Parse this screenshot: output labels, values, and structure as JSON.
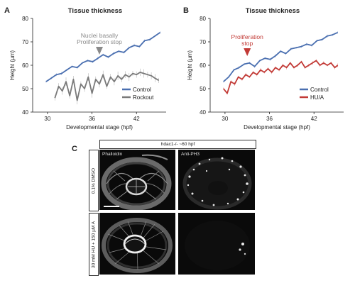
{
  "panel_letters": {
    "a": "A",
    "b": "B",
    "c": "C"
  },
  "chart_data": [
    {
      "type": "line",
      "title": "Tissue thickness",
      "xlabel": "Developmental stage (hpf)",
      "ylabel": "Height (µm)",
      "xlim": [
        28,
        46
      ],
      "ylim": [
        40,
        80
      ],
      "xticks": [
        "30",
        "36",
        "42"
      ],
      "yticks": [
        "40",
        "50",
        "60",
        "70",
        "80"
      ],
      "annotation": {
        "text": [
          "Nuclei basally",
          "Proliferation stop"
        ],
        "x": 37,
        "color": "#8a8a8a"
      },
      "legend_position": "bottom-right",
      "series": [
        {
          "name": "Control",
          "color": "#4a6fb0",
          "x": [
            29.8,
            30.5,
            31.2,
            31.9,
            32.6,
            33.3,
            34.0,
            34.7,
            35.4,
            36.1,
            36.8,
            37.5,
            38.2,
            38.9,
            39.6,
            40.3,
            41.0,
            41.7,
            42.4,
            43.1,
            43.8,
            44.5,
            45.2
          ],
          "y": [
            53,
            54.5,
            56,
            56.5,
            58,
            59.5,
            59,
            61,
            62,
            61.5,
            63,
            64.5,
            63.5,
            65,
            66,
            65.5,
            67.5,
            68.5,
            68,
            70.5,
            71,
            72.5,
            74
          ]
        },
        {
          "name": "Rockout",
          "color": "#7a7a7a",
          "x": [
            31.0,
            31.5,
            32.0,
            32.5,
            33.0,
            33.5,
            34.0,
            34.5,
            35.0,
            35.5,
            36.0,
            36.5,
            37.0,
            37.5,
            38.0,
            38.5,
            39.0,
            39.5,
            40.0,
            40.5,
            41.0,
            41.5,
            42.0,
            42.5,
            43.0,
            43.5,
            44.0,
            44.5,
            45.0
          ],
          "y": [
            46,
            51,
            49,
            53,
            47,
            54,
            45,
            52,
            50,
            55,
            48,
            54,
            52,
            56,
            51,
            55,
            53,
            55.5,
            54,
            56,
            55,
            56.5,
            56,
            57,
            56.5,
            56,
            55.5,
            54.5,
            53.5
          ]
        }
      ]
    },
    {
      "type": "line",
      "title": "Tissue thickness",
      "xlabel": "Developmental stage (hpf)",
      "ylabel": "Height (µm)",
      "xlim": [
        28,
        46
      ],
      "ylim": [
        40,
        80
      ],
      "xticks": [
        "30",
        "36",
        "42"
      ],
      "yticks": [
        "40",
        "50",
        "60",
        "70",
        "80"
      ],
      "annotation": {
        "text": [
          "Proliferation",
          "stop"
        ],
        "x": 33,
        "color": "#c23a36"
      },
      "legend_position": "bottom-right",
      "series": [
        {
          "name": "Control",
          "color": "#4a6fb0",
          "x": [
            29.8,
            30.5,
            31.2,
            31.9,
            32.6,
            33.3,
            34.0,
            34.7,
            35.4,
            36.1,
            36.8,
            37.5,
            38.2,
            38.9,
            39.6,
            40.3,
            41.0,
            41.7,
            42.4,
            43.1,
            43.8,
            44.5,
            45.2
          ],
          "y": [
            53,
            55,
            58,
            59,
            60.5,
            61,
            59.5,
            62,
            63,
            62.5,
            64,
            66,
            65,
            67,
            67.5,
            68,
            69,
            68.5,
            70.5,
            71,
            72.5,
            73,
            74
          ]
        },
        {
          "name": "HU/A",
          "color": "#c23a36",
          "x": [
            29.8,
            30.3,
            30.8,
            31.3,
            31.8,
            32.3,
            32.8,
            33.3,
            33.8,
            34.3,
            34.8,
            35.3,
            35.8,
            36.3,
            36.8,
            37.3,
            37.8,
            38.3,
            38.8,
            39.3,
            39.8,
            40.3,
            40.8,
            41.3,
            41.8,
            42.3,
            42.8,
            43.3,
            43.8,
            44.3,
            44.8,
            45.2
          ],
          "y": [
            50,
            48,
            53,
            52,
            55,
            54,
            56,
            55,
            57,
            56,
            58,
            57,
            58.5,
            57,
            59,
            58,
            60,
            59,
            61,
            59,
            60,
            61.5,
            59,
            60,
            61,
            62,
            60,
            61,
            60,
            61,
            59,
            60
          ]
        }
      ]
    }
  ],
  "micrograph": {
    "header": "hdac1-/- ~60 hpf",
    "rows": [
      "0.1% DMSO",
      "30 mM HU + 150 µM A"
    ],
    "columns": [
      "Phalloidin",
      "Anti-PH3"
    ]
  }
}
